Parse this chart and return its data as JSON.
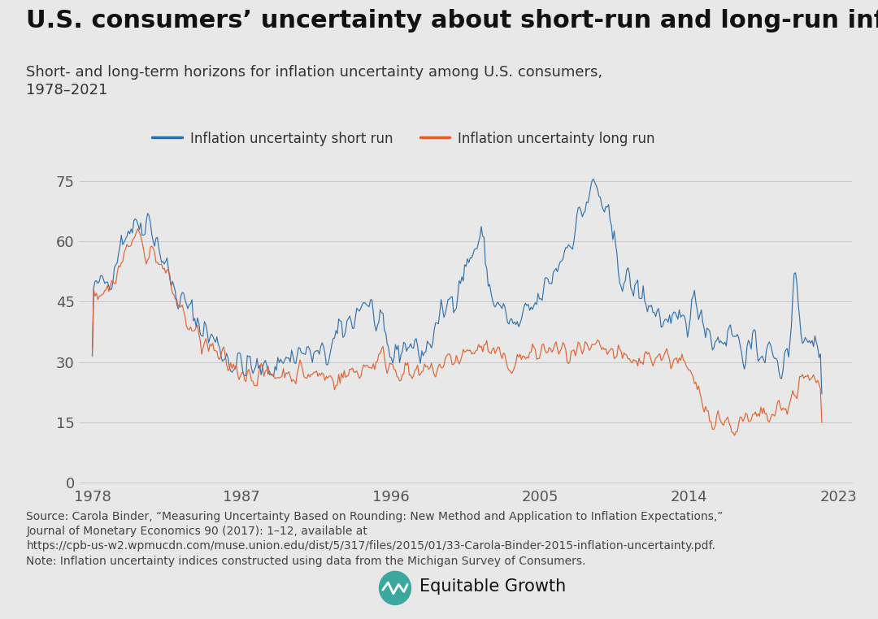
{
  "title": "U.S. consumers’ uncertainty about short-run and long-run inflation",
  "subtitle": "Short- and long-term horizons for inflation uncertainty among U.S. consumers,\n1978–2021",
  "legend_short": "Inflation uncertainty short run",
  "legend_long": "Inflation uncertainty long run",
  "color_short": "#2B6CA9",
  "color_long": "#E05C2A",
  "background_color": "#E8E8E8",
  "yticks": [
    0,
    15,
    30,
    45,
    60,
    75
  ],
  "xtick_years": [
    1978,
    1987,
    1996,
    2005,
    2014,
    2023
  ],
  "ylim": [
    0,
    80
  ],
  "xlim": [
    1977.2,
    2023.8
  ],
  "source_text": "Source: Carola Binder, “Measuring Uncertainty Based on Rounding: New Method and Application to Inflation Expectations,”\nJournal of Monetary Economics 90 (2017): 1–12, available at\nhttps://cpb-us-w2.wpmucdn.com/muse.union.edu/dist/5/317/files/2015/01/33-Carola-Binder-2015-inflation-uncertainty.pdf.\nNote: Inflation uncertainty indices constructed using data from the Michigan Survey of Consumers.",
  "title_fontsize": 22,
  "subtitle_fontsize": 13,
  "legend_fontsize": 12,
  "tick_fontsize": 13,
  "source_fontsize": 10
}
